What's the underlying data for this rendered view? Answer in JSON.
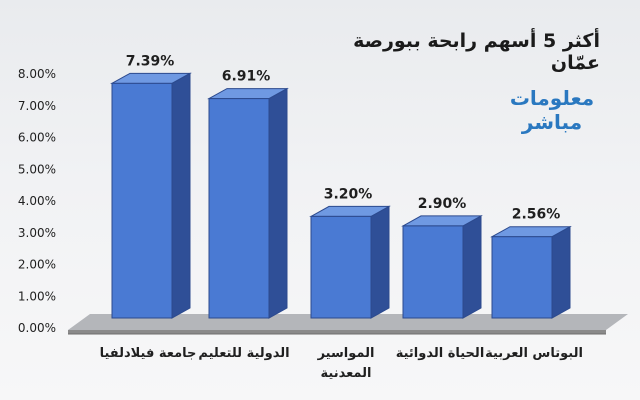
{
  "header": {
    "title": "أكثر 5 أسهم رابحة ببورصة عمّان"
  },
  "logo": {
    "line1": "معلومات",
    "line2": "مباشر"
  },
  "colors": {
    "bar_front": "#4a7ad3",
    "bar_side": "#2f4f97",
    "bar_top": "#6f99e2",
    "bar_edge": "#2c4a8e",
    "floor": "#8a8a8a",
    "grid": "#d5d7db"
  },
  "chart_data": {
    "type": "bar",
    "title": "أكثر 5 أسهم رابحة ببورصة عمّان",
    "categories": [
      "جامعة فيلادلفيا",
      "الدولية للتعليم",
      "المواسير المعدنية",
      "الحياة الدوائية",
      "البوتاس العربية"
    ],
    "category_lines": [
      [
        "جامعة فيلادلفيا"
      ],
      [
        "الدولية للتعليم"
      ],
      [
        "المواسير",
        "المعدنية"
      ],
      [
        "الحياة الدوائية"
      ],
      [
        "البوتاس العربية"
      ]
    ],
    "values": [
      7.39,
      6.91,
      3.2,
      2.9,
      2.56
    ],
    "value_labels": [
      "7.39%",
      "6.91%",
      "3.20%",
      "2.90%",
      "2.56%"
    ],
    "yticks": [
      "0.00%",
      "1.00%",
      "2.00%",
      "3.00%",
      "4.00%",
      "5.00%",
      "6.00%",
      "7.00%",
      "8.00%"
    ],
    "ylim": [
      0,
      8
    ],
    "xlabel": "",
    "ylabel": "",
    "grid": false,
    "style": "3d-bar"
  }
}
